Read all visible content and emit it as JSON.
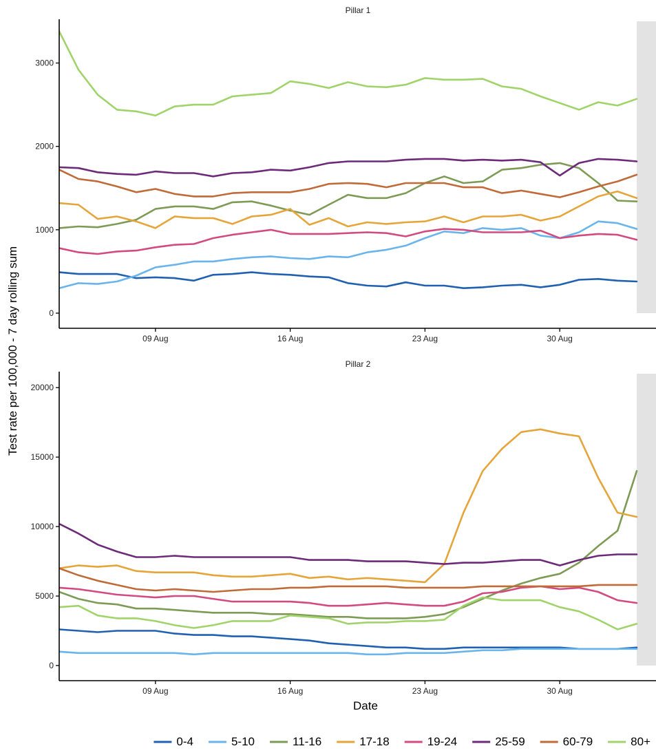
{
  "chart_data": {
    "type": "line",
    "ylabel": "Test rate per 100,000 - 7 day rolling sum",
    "xlabel": "Date",
    "x_ticks": [
      "09 Aug",
      "16 Aug",
      "23 Aug",
      "30 Aug"
    ],
    "legend": {
      "position": "bottom",
      "entries": [
        {
          "label": "0-4",
          "color": "#2060b0"
        },
        {
          "label": "5-10",
          "color": "#6ab4ec"
        },
        {
          "label": "11-16",
          "color": "#7d9b55"
        },
        {
          "label": "17-18",
          "color": "#e5a53a"
        },
        {
          "label": "19-24",
          "color": "#d24a80"
        },
        {
          "label": "25-59",
          "color": "#6c2a78"
        },
        {
          "label": "60-79",
          "color": "#c06a38"
        },
        {
          "label": "80+",
          "color": "#a0d46a"
        }
      ]
    },
    "panels": [
      {
        "title": "Pillar 1",
        "ylim": [
          0,
          3500
        ],
        "y_ticks": [
          0,
          1000,
          2000,
          3000
        ],
        "x_start": "2020-08-04",
        "x_end": "2020-09-04",
        "shaded_from": "2020-09-03",
        "series": [
          {
            "name": "0-4",
            "color": "#2060b0",
            "values": [
              490,
              470,
              470,
              470,
              420,
              430,
              420,
              390,
              460,
              470,
              490,
              470,
              460,
              440,
              430,
              360,
              330,
              320,
              370,
              330,
              330,
              300,
              310,
              330,
              340,
              310,
              340,
              400,
              410,
              390,
              380
            ]
          },
          {
            "name": "5-10",
            "color": "#6ab4ec",
            "values": [
              300,
              360,
              350,
              380,
              450,
              550,
              580,
              620,
              620,
              650,
              670,
              680,
              660,
              650,
              680,
              670,
              730,
              760,
              810,
              900,
              980,
              960,
              1020,
              1000,
              1020,
              930,
              900,
              970,
              1100,
              1080,
              1010
            ]
          },
          {
            "name": "11-16",
            "color": "#7d9b55",
            "values": [
              1020,
              1040,
              1030,
              1070,
              1120,
              1250,
              1280,
              1280,
              1250,
              1330,
              1340,
              1290,
              1230,
              1180,
              1300,
              1420,
              1380,
              1380,
              1440,
              1560,
              1640,
              1560,
              1580,
              1720,
              1740,
              1780,
              1800,
              1740,
              1560,
              1350,
              1340
            ]
          },
          {
            "name": "17-18",
            "color": "#e5a53a",
            "values": [
              1320,
              1300,
              1130,
              1160,
              1100,
              1020,
              1160,
              1140,
              1140,
              1070,
              1160,
              1180,
              1250,
              1060,
              1140,
              1040,
              1090,
              1070,
              1090,
              1100,
              1160,
              1090,
              1160,
              1160,
              1180,
              1110,
              1160,
              1280,
              1400,
              1460,
              1380
            ]
          },
          {
            "name": "19-24",
            "color": "#d24a80",
            "values": [
              780,
              730,
              710,
              740,
              750,
              790,
              820,
              830,
              900,
              940,
              970,
              1000,
              950,
              950,
              950,
              960,
              970,
              960,
              920,
              980,
              1010,
              1000,
              970,
              970,
              970,
              990,
              900,
              930,
              950,
              940,
              880
            ]
          },
          {
            "name": "25-59",
            "color": "#6c2a78",
            "values": [
              1750,
              1740,
              1690,
              1670,
              1660,
              1700,
              1680,
              1680,
              1640,
              1680,
              1690,
              1720,
              1710,
              1750,
              1800,
              1820,
              1820,
              1820,
              1840,
              1850,
              1850,
              1830,
              1840,
              1830,
              1840,
              1810,
              1650,
              1800,
              1850,
              1840,
              1820
            ]
          },
          {
            "name": "60-79",
            "color": "#c06a38",
            "values": [
              1720,
              1610,
              1580,
              1520,
              1450,
              1490,
              1430,
              1400,
              1400,
              1440,
              1450,
              1450,
              1450,
              1490,
              1550,
              1560,
              1550,
              1510,
              1560,
              1560,
              1560,
              1510,
              1510,
              1440,
              1470,
              1430,
              1390,
              1450,
              1520,
              1580,
              1660
            ]
          },
          {
            "name": "80+",
            "color": "#a0d46a",
            "values": [
              3380,
              2920,
              2620,
              2440,
              2420,
              2370,
              2480,
              2500,
              2500,
              2600,
              2620,
              2640,
              2780,
              2750,
              2700,
              2770,
              2720,
              2710,
              2740,
              2820,
              2800,
              2800,
              2810,
              2720,
              2690,
              2600,
              2520,
              2440,
              2530,
              2490,
              2570
            ]
          }
        ]
      },
      {
        "title": "Pillar 2",
        "ylim": [
          0,
          21000
        ],
        "y_ticks": [
          0,
          5000,
          10000,
          15000,
          20000
        ],
        "x_start": "2020-08-04",
        "x_end": "2020-09-04",
        "shaded_from": "2020-09-03",
        "series": [
          {
            "name": "0-4",
            "color": "#2060b0",
            "values": [
              2600,
              2500,
              2400,
              2500,
              2500,
              2500,
              2300,
              2200,
              2200,
              2100,
              2100,
              2000,
              1900,
              1800,
              1600,
              1500,
              1400,
              1300,
              1300,
              1200,
              1200,
              1300,
              1300,
              1300,
              1300,
              1300,
              1300,
              1200,
              1200,
              1200,
              1300
            ]
          },
          {
            "name": "5-10",
            "color": "#6ab4ec",
            "values": [
              1000,
              900,
              900,
              900,
              900,
              900,
              900,
              800,
              900,
              900,
              900,
              900,
              900,
              900,
              900,
              900,
              800,
              800,
              900,
              900,
              900,
              1000,
              1100,
              1100,
              1200,
              1200,
              1200,
              1200,
              1200,
              1200,
              1200
            ]
          },
          {
            "name": "11-16",
            "color": "#7d9b55",
            "values": [
              5300,
              4800,
              4500,
              4400,
              4100,
              4100,
              4000,
              3900,
              3800,
              3800,
              3800,
              3700,
              3700,
              3600,
              3500,
              3500,
              3400,
              3400,
              3400,
              3500,
              3700,
              4200,
              4800,
              5400,
              5900,
              6300,
              6600,
              7400,
              8600,
              9700,
              14000
            ]
          },
          {
            "name": "17-18",
            "color": "#e5a53a",
            "values": [
              7000,
              7200,
              7100,
              7200,
              6800,
              6700,
              6700,
              6700,
              6500,
              6400,
              6400,
              6500,
              6600,
              6300,
              6400,
              6200,
              6300,
              6200,
              6100,
              6000,
              7300,
              11000,
              14000,
              15600,
              16800,
              17000,
              16700,
              16500,
              13500,
              11000,
              10700
            ]
          },
          {
            "name": "19-24",
            "color": "#d24a80",
            "values": [
              5600,
              5500,
              5300,
              5100,
              5000,
              4900,
              5000,
              5000,
              4800,
              4600,
              4600,
              4600,
              4600,
              4500,
              4300,
              4300,
              4400,
              4500,
              4400,
              4300,
              4300,
              4600,
              5200,
              5300,
              5600,
              5700,
              5500,
              5600,
              5300,
              4700,
              4500
            ]
          },
          {
            "name": "25-59",
            "color": "#6c2a78",
            "values": [
              10200,
              9500,
              8700,
              8200,
              7800,
              7800,
              7900,
              7800,
              7800,
              7800,
              7800,
              7800,
              7800,
              7600,
              7600,
              7600,
              7500,
              7500,
              7500,
              7400,
              7300,
              7400,
              7400,
              7500,
              7600,
              7600,
              7200,
              7600,
              7900,
              8000,
              8000
            ]
          },
          {
            "name": "60-79",
            "color": "#c06a38",
            "values": [
              7000,
              6500,
              6100,
              5800,
              5500,
              5400,
              5500,
              5400,
              5300,
              5400,
              5500,
              5500,
              5600,
              5600,
              5700,
              5700,
              5700,
              5700,
              5600,
              5600,
              5600,
              5600,
              5700,
              5700,
              5700,
              5700,
              5700,
              5700,
              5800,
              5800,
              5800
            ]
          },
          {
            "name": "80+",
            "color": "#a0d46a",
            "values": [
              4200,
              4300,
              3600,
              3400,
              3400,
              3200,
              2900,
              2700,
              2900,
              3200,
              3200,
              3200,
              3600,
              3500,
              3400,
              3000,
              3100,
              3100,
              3200,
              3200,
              3300,
              4300,
              4900,
              4700,
              4700,
              4700,
              4200,
              3900,
              3300,
              2600,
              3000
            ]
          }
        ]
      }
    ]
  }
}
